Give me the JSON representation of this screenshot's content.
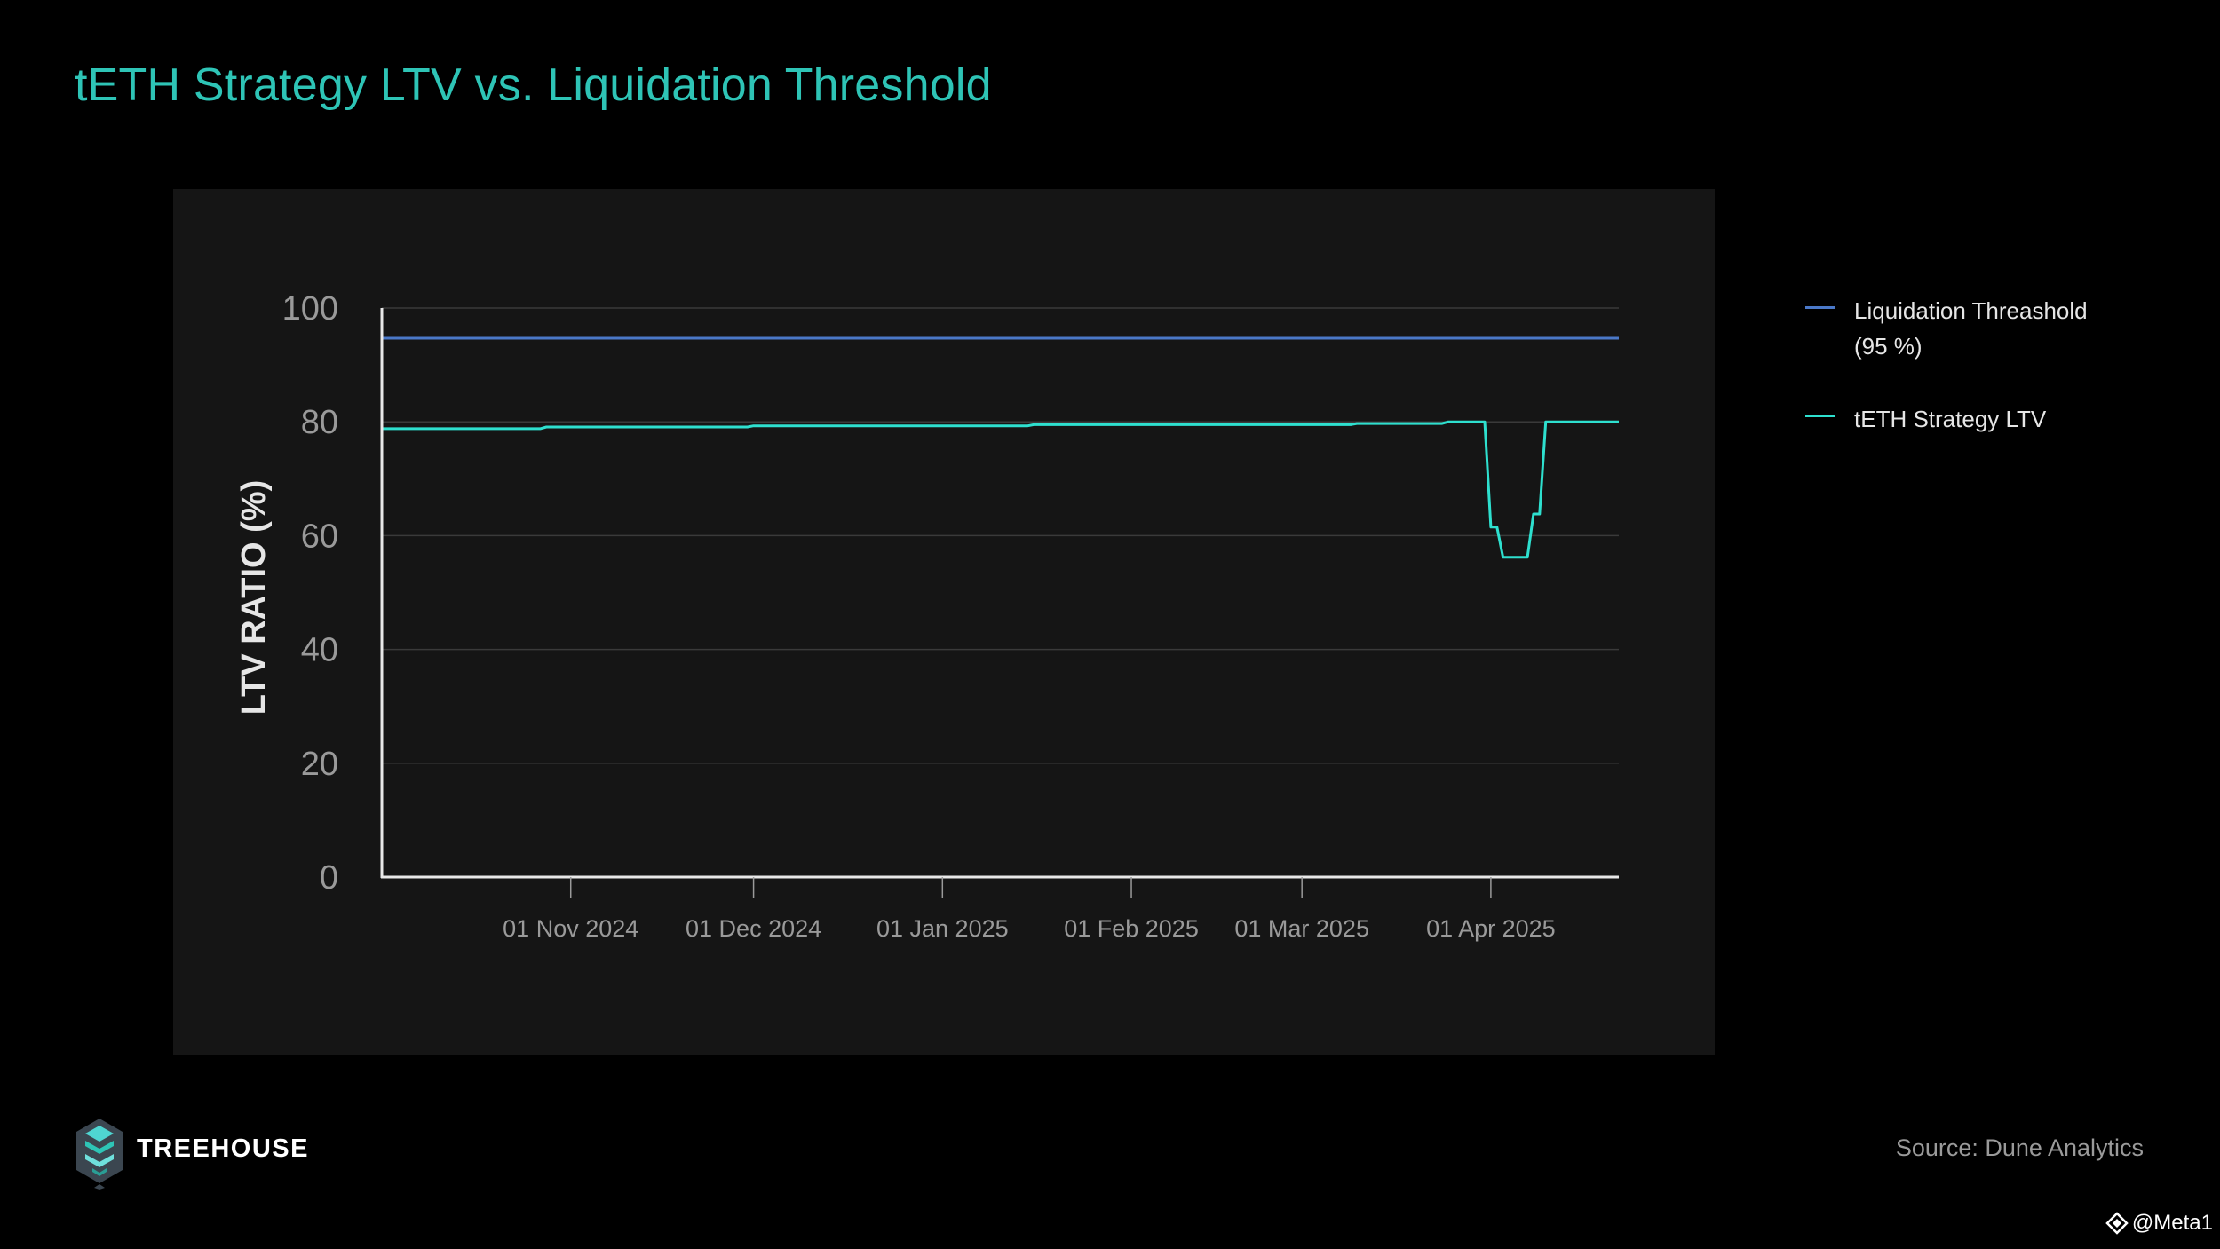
{
  "page": {
    "title": "tETH Strategy LTV vs. Liquidation Threshold",
    "brand": "TREEHOUSE",
    "source": "Source: Dune Analytics",
    "watermark": "@Meta1"
  },
  "colors": {
    "title": "#2ec4b6",
    "threshold_line": "#4a78c8",
    "ltv_line": "#2ee0cf",
    "panel": "#151515",
    "background": "#000000"
  },
  "chart_data": {
    "type": "line",
    "title": "",
    "xlabel": "",
    "ylabel": "LTV RATIO (%)",
    "ylim": [
      0,
      100
    ],
    "yticks": [
      0,
      20,
      40,
      60,
      80,
      100
    ],
    "xlim": [
      "2024-10-01",
      "2025-04-22"
    ],
    "xticks": [
      {
        "date": "2024-11-01",
        "label": "01 Nov 2024"
      },
      {
        "date": "2024-12-01",
        "label": "01 Dec 2024"
      },
      {
        "date": "2025-01-01",
        "label": "01 Jan 2025"
      },
      {
        "date": "2025-02-01",
        "label": "01 Feb 2025"
      },
      {
        "date": "2025-03-01",
        "label": "01 Mar 2025"
      },
      {
        "date": "2025-04-01",
        "label": "01 Apr 2025"
      }
    ],
    "grid": true,
    "legend_position": "right",
    "series": [
      {
        "name": "Liquidation Threashold (95 %)",
        "legend_lines": [
          "Liquidation Threashold",
          "(95 %)"
        ],
        "color": "#4a78c8",
        "points": [
          [
            "2024-10-01",
            94.7
          ],
          [
            "2025-04-22",
            94.7
          ]
        ]
      },
      {
        "name": "tETH Strategy LTV",
        "legend_lines": [
          "tETH Strategy LTV"
        ],
        "color": "#2ee0cf",
        "points": [
          [
            "2024-10-01",
            78.8
          ],
          [
            "2024-10-27",
            78.8
          ],
          [
            "2024-10-28",
            79.1
          ],
          [
            "2024-11-30",
            79.1
          ],
          [
            "2024-12-01",
            79.3
          ],
          [
            "2025-01-15",
            79.3
          ],
          [
            "2025-01-16",
            79.5
          ],
          [
            "2025-03-09",
            79.5
          ],
          [
            "2025-03-10",
            79.7
          ],
          [
            "2025-03-24",
            79.7
          ],
          [
            "2025-03-25",
            80.0
          ],
          [
            "2025-03-31",
            80.0
          ],
          [
            "2025-04-01",
            61.5
          ],
          [
            "2025-04-02",
            61.5
          ],
          [
            "2025-04-03",
            56.2
          ],
          [
            "2025-04-07",
            56.2
          ],
          [
            "2025-04-08",
            63.8
          ],
          [
            "2025-04-09",
            63.8
          ],
          [
            "2025-04-10",
            80.0
          ],
          [
            "2025-04-22",
            80.0
          ]
        ]
      }
    ]
  }
}
